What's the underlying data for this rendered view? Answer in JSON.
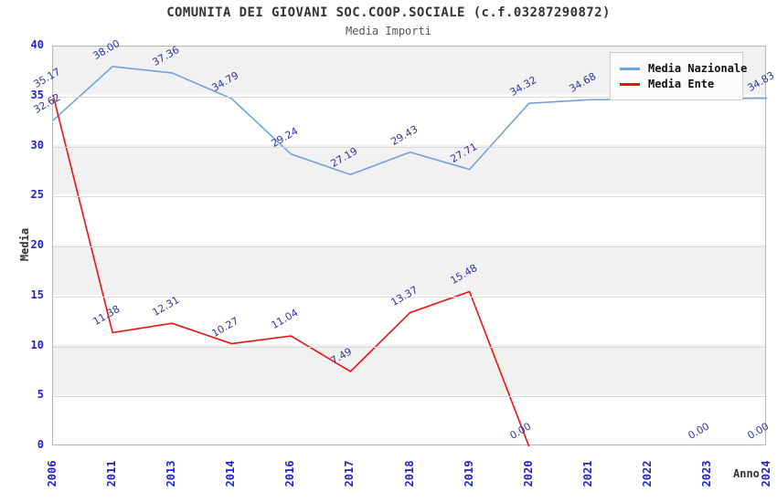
{
  "chart_data": {
    "type": "line",
    "title": "COMUNITA DEI GIOVANI SOC.COOP.SOCIALE (c.f.03287290872)",
    "subtitle": "Media Importi",
    "xlabel": "Anno",
    "ylabel": "Media",
    "ylim": [
      0,
      40
    ],
    "y_ticks": [
      0,
      5,
      10,
      15,
      20,
      25,
      30,
      35,
      40
    ],
    "categories": [
      "2006",
      "2011",
      "2013",
      "2014",
      "2016",
      "2017",
      "2018",
      "2019",
      "2020",
      "2021",
      "2022",
      "2023",
      "2024"
    ],
    "series": [
      {
        "name": "Media Nazionale",
        "color": "#73a2d8",
        "values": [
          32.62,
          38.0,
          37.36,
          34.79,
          29.24,
          27.19,
          29.43,
          27.71,
          34.32,
          34.68,
          34.75,
          34.8,
          34.83
        ],
        "labels": [
          "32.62",
          "38.00",
          "37.36",
          "34.79",
          "29.24",
          "27.19",
          "29.43",
          "27.71",
          "34.32",
          "34.68",
          "",
          "",
          "34.83"
        ]
      },
      {
        "name": "Media Ente",
        "color": "#ee1111",
        "values": [
          35.17,
          11.38,
          12.31,
          10.27,
          11.04,
          7.49,
          13.37,
          15.48,
          0.0,
          null,
          null,
          0.0,
          0.0
        ],
        "labels": [
          "35.17",
          "11.38",
          "12.31",
          "10.27",
          "11.04",
          "7.49",
          "13.37",
          "15.48",
          "0.00",
          "",
          "",
          "0.00",
          "0.00"
        ],
        "line_until_index": 8
      }
    ],
    "legend": {
      "position": "top-right",
      "items": [
        "Media Nazionale",
        "Media Ente"
      ]
    },
    "grid": "horizontal-gridlines-with-alternating-bands"
  },
  "colors": {
    "tick_label": "#2222cc",
    "data_label": "#333399",
    "title": "#333333",
    "subtitle": "#555555",
    "axis_title": "#333333",
    "band": "#f1f1f1",
    "gridline": "#d9d9d9",
    "plot_border": "#b5b5b5",
    "legend_bg": "#fbfbfb",
    "legend_border": "#cccccc",
    "nazionale_line": "#73a2d8",
    "ente_line": "#ee1111"
  }
}
